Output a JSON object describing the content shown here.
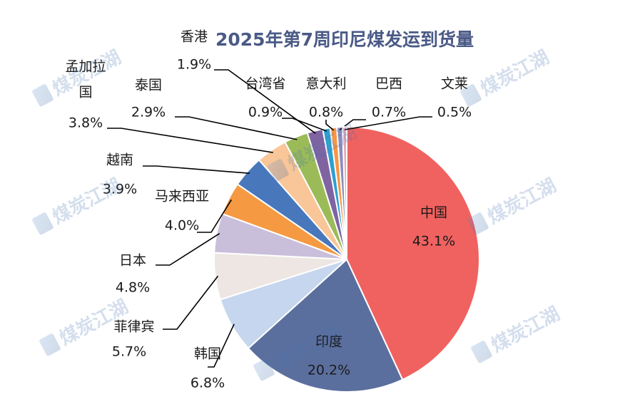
{
  "chart_data": {
    "type": "pie",
    "title": "2025年第7周印尼煤发运到货量",
    "slices": [
      {
        "label": "中国",
        "value": 43.1,
        "value_text": "43.1%",
        "color": "#f06260"
      },
      {
        "label": "印度",
        "value": 20.2,
        "value_text": "20.2%",
        "color": "#5b6f9e"
      },
      {
        "label": "韩国",
        "value": 6.8,
        "value_text": "6.8%",
        "color": "#c5d6ee"
      },
      {
        "label": "菲律宾",
        "value": 5.7,
        "value_text": "5.7%",
        "color": "#ede6e2"
      },
      {
        "label": "日本",
        "value": 4.8,
        "value_text": "4.8%",
        "color": "#c9bfdb"
      },
      {
        "label": "马来西亚",
        "value": 4.0,
        "value_text": "4.0%",
        "color": "#f59a43"
      },
      {
        "label": "越南",
        "value": 3.9,
        "value_text": "3.9%",
        "color": "#4877bc"
      },
      {
        "label": "孟加拉国",
        "value": 3.8,
        "value_text": "3.8%",
        "color": "#f8c698"
      },
      {
        "label": "泰国",
        "value": 2.9,
        "value_text": "2.9%",
        "color": "#9bbb59"
      },
      {
        "label": "香港",
        "value": 1.9,
        "value_text": "1.9%",
        "color": "#8064a2"
      },
      {
        "label": "台湾省",
        "value": 0.9,
        "value_text": "0.9%",
        "color": "#2f9fd0"
      },
      {
        "label": "意大利",
        "value": 0.8,
        "value_text": "0.8%",
        "color": "#f79646"
      },
      {
        "label": "巴西",
        "value": 0.7,
        "value_text": "0.7%",
        "color": "#8c8cbf"
      },
      {
        "label": "文莱",
        "value": 0.5,
        "value_text": "0.5%",
        "color": "#e6a8b4"
      }
    ]
  },
  "watermark": {
    "text": "煤炭江湖",
    "icon": "coal-logo-icon",
    "color": "#3f6fb0"
  }
}
